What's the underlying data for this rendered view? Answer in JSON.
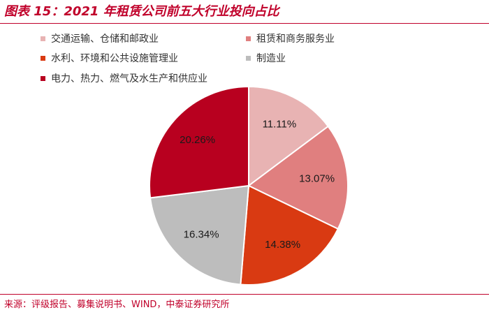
{
  "title": "图表 15：2021 年租赁公司前五大行业投向占比",
  "source": "来源：评级报告、募集说明书、WIND，中泰证券研究所",
  "chart_data": {
    "type": "pie",
    "title": "",
    "categories": [
      "交通运输、仓储和邮政业",
      "租赁和商务服务业",
      "水利、环境和公共设施管理业",
      "制造业",
      "电力、热力、燃气及水生产和供应业"
    ],
    "values": [
      11.11,
      13.07,
      14.38,
      16.34,
      20.26
    ],
    "labels": [
      "11.11%",
      "13.07%",
      "14.38%",
      "16.34%",
      "20.26%"
    ],
    "colors": [
      "#e8b3b3",
      "#e07f7f",
      "#d93a12",
      "#bdbdbd",
      "#b8001f"
    ],
    "legend_position": "top"
  }
}
